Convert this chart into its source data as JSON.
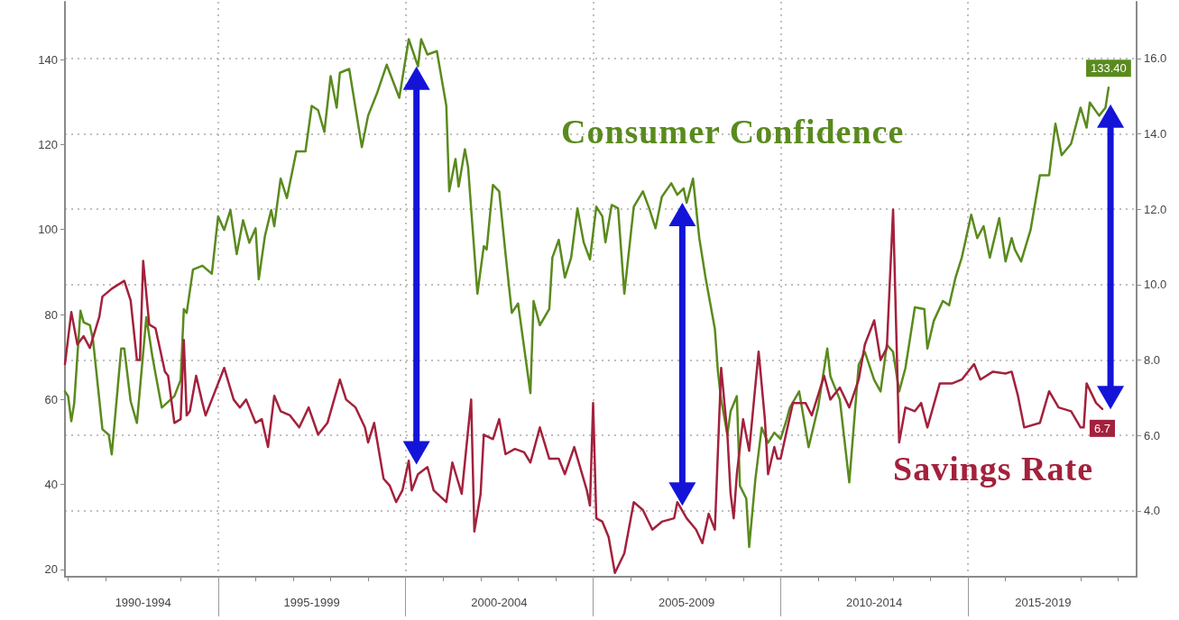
{
  "chart_data": {
    "type": "line",
    "xlim": [
      "1990-12",
      "2019-07"
    ],
    "xticks": [
      {
        "value": "1991-01",
        "label": null
      },
      {
        "value": "1992-01",
        "label": null
      },
      {
        "value": "1993-01",
        "label": "1990-1994"
      },
      {
        "value": "1994-01",
        "label": null
      },
      {
        "value": "1995-01",
        "label": null
      },
      {
        "value": "1996-01",
        "label": null
      },
      {
        "value": "1997-01",
        "label": null
      },
      {
        "value": "1997-07",
        "label": "1995-1999"
      },
      {
        "value": "1998-01",
        "label": null
      },
      {
        "value": "1999-01",
        "label": null
      },
      {
        "value": "2000-01",
        "label": null
      },
      {
        "value": "2001-01",
        "label": null
      },
      {
        "value": "2002-01",
        "label": null
      },
      {
        "value": "2002-07",
        "label": "2000-2004"
      },
      {
        "value": "2003-01",
        "label": null
      },
      {
        "value": "2004-01",
        "label": null
      },
      {
        "value": "2005-01",
        "label": null
      },
      {
        "value": "2006-01",
        "label": null
      },
      {
        "value": "2007-01",
        "label": null
      },
      {
        "value": "2007-07",
        "label": "2005-2009"
      },
      {
        "value": "2008-01",
        "label": null
      },
      {
        "value": "2009-01",
        "label": null
      },
      {
        "value": "2010-01",
        "label": null
      },
      {
        "value": "2011-01",
        "label": null
      },
      {
        "value": "2012-01",
        "label": null
      },
      {
        "value": "2012-07",
        "label": "2010-2014"
      },
      {
        "value": "2013-01",
        "label": null
      },
      {
        "value": "2014-01",
        "label": null
      },
      {
        "value": "2015-01",
        "label": null
      },
      {
        "value": "2016-01",
        "label": null
      },
      {
        "value": "2017-01",
        "label": "2015-2019"
      },
      {
        "value": "2018-01",
        "label": null
      },
      {
        "value": "2019-01",
        "label": null
      }
    ],
    "ylim": [
      18.3,
      153.6
    ],
    "yticks": [
      20,
      40,
      60,
      80,
      100,
      120,
      140
    ],
    "y2lim": [
      2.25,
      17.5
    ],
    "y2ticks": [
      {
        "value": 4,
        "label": "4.0"
      },
      {
        "value": 6,
        "label": "6.0"
      },
      {
        "value": 8,
        "label": "8.0"
      },
      {
        "value": 10,
        "label": "10.0"
      },
      {
        "value": 12,
        "label": "12.0"
      },
      {
        "value": 14,
        "label": "14.0"
      },
      {
        "value": 16,
        "label": "16.0"
      }
    ],
    "grid": true,
    "series": [
      {
        "name": "Consumer Confidence",
        "color": "#5a8a1e",
        "x": [
          "1990-12",
          "1991-01",
          "1991-02",
          "1991-03",
          "1991-05",
          "1991-06",
          "1991-08",
          "1991-09",
          "1991-12",
          "1992-02",
          "1992-03",
          "1992-06",
          "1992-07",
          "1992-09",
          "1992-11",
          "1993-02",
          "1993-04",
          "1993-05",
          "1993-07",
          "1993-11",
          "1994-01",
          "1994-02",
          "1994-03",
          "1994-05",
          "1994-08",
          "1994-11",
          "1995-01",
          "1995-03",
          "1995-05",
          "1995-07",
          "1995-09",
          "1995-11",
          "1996-01",
          "1996-02",
          "1996-04",
          "1996-06",
          "1996-07",
          "1996-09",
          "1996-11",
          "1997-02",
          "1997-05",
          "1997-07",
          "1997-09",
          "1997-11",
          "1998-01",
          "1998-03",
          "1998-04",
          "1998-07",
          "1998-11",
          "1999-01",
          "1999-04",
          "1999-07",
          "1999-11",
          "2000-02",
          "2000-05",
          "2000-06",
          "2000-08",
          "2000-11",
          "2001-02",
          "2001-03",
          "2001-05",
          "2001-06",
          "2001-08",
          "2001-09",
          "2001-12",
          "2002-02",
          "2002-03",
          "2002-05",
          "2002-07",
          "2002-09",
          "2002-11",
          "2003-01",
          "2003-05",
          "2003-06",
          "2003-08",
          "2003-11",
          "2003-12",
          "2004-02",
          "2004-04",
          "2004-06",
          "2004-08",
          "2004-10",
          "2004-12",
          "2005-02",
          "2005-04",
          "2005-05",
          "2005-07",
          "2005-09",
          "2005-11",
          "2006-02",
          "2006-05",
          "2006-07",
          "2006-09",
          "2006-11",
          "2007-02",
          "2007-04",
          "2007-06",
          "2007-07",
          "2007-09",
          "2007-11",
          "2008-01",
          "2008-04",
          "2008-05",
          "2008-06",
          "2008-08",
          "2008-09",
          "2008-11",
          "2008-12",
          "2009-02",
          "2009-03",
          "2009-05",
          "2009-07",
          "2009-09",
          "2009-11",
          "2010-01",
          "2010-03",
          "2010-04",
          "2010-07",
          "2010-10",
          "2011-01",
          "2011-04",
          "2011-05",
          "2011-08",
          "2011-10",
          "2011-11",
          "2012-02",
          "2012-04",
          "2012-07",
          "2012-09",
          "2012-11",
          "2013-01",
          "2013-03",
          "2013-05",
          "2013-08",
          "2013-11",
          "2013-12",
          "2014-02",
          "2014-05",
          "2014-07",
          "2014-09",
          "2014-11",
          "2015-02",
          "2015-04",
          "2015-06",
          "2015-08",
          "2015-11",
          "2016-01",
          "2016-03",
          "2016-04",
          "2016-06",
          "2016-09",
          "2016-12",
          "2017-03",
          "2017-05",
          "2017-07",
          "2017-10",
          "2018-01",
          "2018-03",
          "2018-04",
          "2018-07",
          "2018-09",
          "2018-10"
        ],
        "values": [
          61.9,
          60.8,
          54.9,
          59.1,
          80.9,
          78.2,
          77.5,
          73.9,
          53.0,
          51.7,
          47.1,
          72.0,
          72.0,
          59.6,
          54.5,
          79.4,
          70.1,
          66.1,
          58.1,
          60.8,
          64.6,
          81.3,
          80.4,
          90.6,
          91.5,
          89.6,
          103.1,
          99.9,
          104.6,
          94.2,
          102.2,
          96.9,
          100.3,
          88.3,
          98.5,
          104.6,
          100.8,
          112.0,
          107.4,
          118.4,
          118.4,
          129.1,
          128.1,
          123.0,
          136.1,
          128.7,
          136.9,
          137.8,
          119.4,
          126.8,
          132.3,
          138.8,
          131.0,
          144.8,
          138.4,
          144.8,
          141.2,
          142.0,
          129.1,
          109.0,
          116.6,
          110.1,
          118.9,
          114.7,
          84.9,
          96.1,
          95.3,
          110.5,
          109.0,
          94.2,
          80.4,
          82.6,
          61.5,
          83.2,
          77.5,
          81.3,
          93.4,
          97.6,
          88.7,
          93.4,
          105.0,
          97.0,
          93.0,
          105.4,
          103.1,
          97.0,
          105.8,
          105.0,
          84.9,
          105.4,
          109.0,
          105.0,
          100.3,
          107.7,
          110.9,
          108.2,
          109.7,
          106.3,
          112.0,
          98.0,
          88.7,
          76.6,
          66.5,
          60.0,
          51.7,
          57.2,
          60.8,
          39.7,
          36.7,
          25.3,
          41.4,
          53.4,
          49.8,
          52.2,
          50.7,
          55.3,
          58.1,
          61.9,
          48.8,
          58.1,
          72.0,
          65.5,
          60.0,
          47.1,
          40.5,
          68.2,
          71.2,
          64.6,
          61.9,
          72.9,
          71.2,
          61.9,
          67.4,
          81.7,
          81.3,
          72.0,
          78.5,
          83.2,
          82.2,
          88.7,
          93.4,
          103.5,
          98.0,
          100.8,
          93.4,
          102.7,
          92.5,
          98.0,
          95.3,
          92.5,
          99.9,
          112.8,
          112.8,
          124.9,
          117.5,
          120.2,
          128.7,
          124.0,
          129.9,
          126.8,
          128.7,
          133.4
        ],
        "value_labels": [
          null,
          null,
          null,
          null,
          null,
          null,
          null,
          null,
          null,
          null,
          null,
          null,
          null,
          null,
          null,
          null,
          null,
          null,
          null,
          null,
          null,
          null,
          null,
          null,
          null,
          null,
          null,
          null,
          null,
          null,
          null,
          null,
          null,
          null,
          null,
          null,
          null,
          null,
          null,
          null,
          null,
          null,
          null,
          null,
          null,
          null,
          null,
          null,
          null,
          null,
          null,
          null,
          null,
          null,
          null,
          null,
          null,
          null,
          null,
          null,
          null,
          null,
          null,
          null,
          null,
          null,
          null,
          null,
          null,
          null,
          null,
          null,
          null,
          null,
          null,
          null,
          null,
          null,
          null,
          null,
          null,
          null,
          null,
          null,
          null,
          null,
          null,
          null,
          null,
          null,
          null,
          null,
          null,
          null,
          null,
          null,
          null,
          null,
          null,
          null,
          null,
          null,
          null,
          null,
          null,
          null,
          null,
          null,
          null,
          null,
          null,
          null,
          null,
          null,
          null,
          null,
          null,
          null,
          null,
          null,
          null,
          null,
          null,
          null,
          null,
          null,
          null,
          null,
          null,
          null,
          null,
          null,
          null,
          null,
          null,
          null,
          null,
          null,
          null,
          null,
          null,
          null,
          null,
          null,
          null,
          null,
          null,
          null,
          null,
          null,
          null,
          null,
          null,
          null,
          null,
          null,
          null,
          null,
          null,
          null,
          null,
          "133.40"
        ]
      },
      {
        "name": "Savings Rate",
        "color": "#a3213c",
        "axis": "y2",
        "x": [
          "1990-12",
          "1991-02",
          "1991-04",
          "1991-06",
          "1991-08",
          "1991-11",
          "1991-12",
          "1992-03",
          "1992-07",
          "1992-09",
          "1992-11",
          "1992-12",
          "1993-01",
          "1993-03",
          "1993-05",
          "1993-08",
          "1993-09",
          "1993-11",
          "1994-01",
          "1994-02",
          "1994-03",
          "1994-04",
          "1994-06",
          "1994-08",
          "1994-09",
          "1994-11",
          "1995-03",
          "1995-06",
          "1995-08",
          "1995-10",
          "1996-01",
          "1996-03",
          "1996-05",
          "1996-07",
          "1996-09",
          "1996-12",
          "1997-03",
          "1997-06",
          "1997-09",
          "1997-12",
          "1998-04",
          "1998-06",
          "1998-09",
          "1998-12",
          "1999-01",
          "1999-03",
          "1999-06",
          "1999-08",
          "1999-10",
          "1999-12",
          "2000-02",
          "2000-03",
          "2000-05",
          "2000-08",
          "2000-10",
          "2001-02",
          "2001-04",
          "2001-07",
          "2001-10",
          "2001-11",
          "2002-01",
          "2002-02",
          "2002-05",
          "2002-07",
          "2002-09",
          "2002-12",
          "2003-03",
          "2003-05",
          "2003-08",
          "2003-11",
          "2004-02",
          "2004-04",
          "2004-07",
          "2004-11",
          "2004-12",
          "2005-01",
          "2005-02",
          "2005-04",
          "2005-06",
          "2005-08",
          "2005-11",
          "2006-02",
          "2006-05",
          "2006-08",
          "2006-11",
          "2007-03",
          "2007-04",
          "2007-07",
          "2007-10",
          "2007-12",
          "2008-02",
          "2008-04",
          "2008-06",
          "2008-08",
          "2008-09",
          "2008-10",
          "2008-11",
          "2009-01",
          "2009-03",
          "2009-06",
          "2009-08",
          "2009-09",
          "2009-11",
          "2009-12",
          "2010-01",
          "2010-05",
          "2010-09",
          "2010-11",
          "2011-03",
          "2011-05",
          "2011-08",
          "2011-11",
          "2012-02",
          "2012-04",
          "2012-07",
          "2012-09",
          "2012-11",
          "2013-01",
          "2013-03",
          "2013-05",
          "2013-08",
          "2013-10",
          "2013-12",
          "2014-04",
          "2014-08",
          "2014-11",
          "2015-03",
          "2015-05",
          "2015-09",
          "2016-01",
          "2016-03",
          "2016-05",
          "2016-07",
          "2016-12",
          "2017-03",
          "2017-06",
          "2017-10",
          "2018-01",
          "2018-02",
          "2018-03",
          "2018-06",
          "2018-08"
        ],
        "values": [
          7.89,
          9.27,
          8.41,
          8.63,
          8.32,
          9.15,
          9.68,
          9.89,
          10.1,
          9.58,
          8.0,
          8.0,
          10.63,
          8.94,
          8.84,
          7.69,
          7.58,
          6.33,
          6.43,
          8.53,
          6.53,
          6.64,
          7.58,
          6.86,
          6.53,
          6.95,
          7.79,
          6.95,
          6.74,
          6.95,
          6.33,
          6.43,
          5.69,
          7.05,
          6.64,
          6.53,
          6.21,
          6.74,
          6.02,
          6.33,
          7.48,
          6.95,
          6.74,
          6.21,
          5.81,
          6.33,
          4.85,
          4.66,
          4.23,
          4.54,
          5.33,
          4.54,
          4.97,
          5.16,
          4.54,
          4.23,
          5.28,
          4.45,
          6.95,
          3.45,
          4.45,
          6.02,
          5.9,
          6.43,
          5.5,
          5.64,
          5.55,
          5.28,
          6.21,
          5.38,
          5.38,
          4.97,
          5.69,
          4.54,
          4.14,
          6.86,
          3.8,
          3.71,
          3.3,
          2.35,
          2.87,
          4.23,
          4.02,
          3.5,
          3.71,
          3.8,
          4.23,
          3.8,
          3.5,
          3.14,
          3.92,
          3.5,
          7.79,
          6.02,
          4.45,
          3.8,
          4.97,
          6.43,
          5.59,
          8.22,
          6.43,
          4.97,
          5.69,
          5.38,
          5.38,
          6.86,
          6.86,
          6.53,
          7.58,
          6.95,
          7.27,
          6.74,
          7.48,
          8.41,
          9.05,
          8.0,
          8.32,
          11.99,
          5.81,
          6.74,
          6.64,
          6.86,
          6.21,
          7.38,
          7.38,
          7.48,
          7.89,
          7.48,
          7.69,
          7.64,
          7.69,
          7.05,
          6.21,
          6.33,
          7.17,
          6.74,
          6.64,
          6.21,
          6.21,
          7.38,
          6.86,
          6.7
        ],
        "value_labels": [
          null,
          null,
          null,
          null,
          null,
          null,
          null,
          null,
          null,
          null,
          null,
          null,
          null,
          null,
          null,
          null,
          null,
          null,
          null,
          null,
          null,
          null,
          null,
          null,
          null,
          null,
          null,
          null,
          null,
          null,
          null,
          null,
          null,
          null,
          null,
          null,
          null,
          null,
          null,
          null,
          null,
          null,
          null,
          null,
          null,
          null,
          null,
          null,
          null,
          null,
          null,
          null,
          null,
          null,
          null,
          null,
          null,
          null,
          null,
          null,
          null,
          null,
          null,
          null,
          null,
          null,
          null,
          null,
          null,
          null,
          null,
          null,
          null,
          null,
          null,
          null,
          null,
          null,
          null,
          null,
          null,
          null,
          null,
          null,
          null,
          null,
          null,
          null,
          null,
          null,
          null,
          null,
          null,
          null,
          null,
          null,
          null,
          null,
          null,
          null,
          null,
          null,
          null,
          null,
          null,
          null,
          null,
          null,
          null,
          null,
          null,
          null,
          null,
          null,
          null,
          null,
          null,
          null,
          null,
          null,
          null,
          null,
          null,
          null,
          null,
          null,
          null,
          null,
          null,
          null,
          null,
          null,
          null,
          null,
          null,
          null,
          null,
          null,
          null,
          null,
          null,
          "6.7"
        ]
      }
    ]
  }
}
